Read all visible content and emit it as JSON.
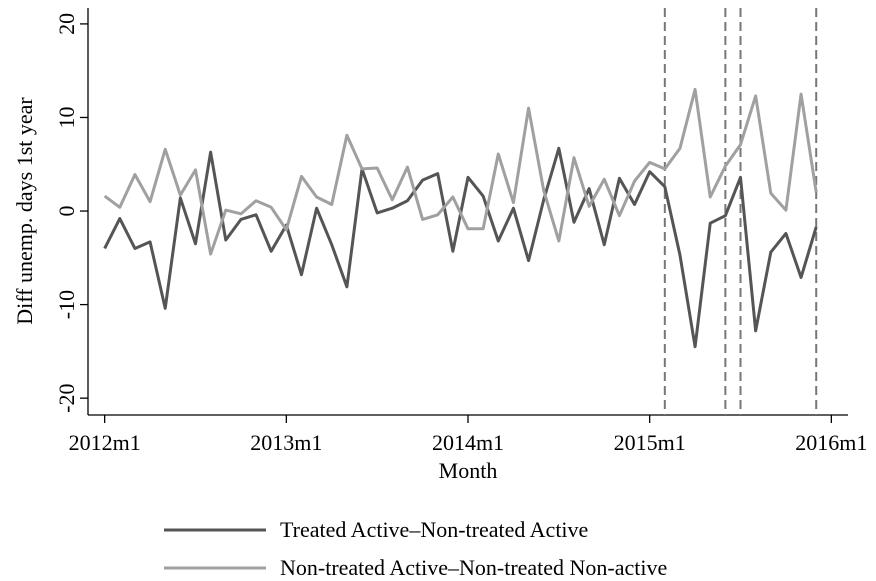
{
  "chart_data": {
    "type": "line",
    "y_label": "Diff unemp. days 1st year",
    "x_label": "Month",
    "x": [
      0,
      1,
      2,
      3,
      4,
      5,
      6,
      7,
      8,
      9,
      10,
      11,
      12,
      13,
      14,
      15,
      16,
      17,
      18,
      19,
      20,
      21,
      22,
      23,
      24,
      25,
      26,
      27,
      28,
      29,
      30,
      31,
      32,
      33,
      34,
      35,
      36,
      37,
      38,
      39,
      40,
      41,
      42,
      43,
      44,
      45,
      46,
      47
    ],
    "series": [
      {
        "name": "Treated Active–Non-treated Active",
        "color": "#555555",
        "values": [
          -4.0,
          -0.8,
          -4.0,
          -3.3,
          -10.4,
          1.4,
          -3.5,
          6.3,
          -3.1,
          -0.9,
          -0.4,
          -4.3,
          -1.5,
          -6.8,
          0.3,
          -3.6,
          -8.1,
          4.5,
          -0.2,
          0.3,
          1.1,
          3.3,
          4.0,
          -4.3,
          3.6,
          1.6,
          -3.2,
          0.3,
          -5.3,
          1.2,
          6.7,
          -1.2,
          2.4,
          -3.6,
          3.5,
          0.7,
          4.2,
          2.6,
          -4.7,
          -14.5,
          -1.3,
          -0.5,
          3.6,
          -12.8,
          -4.4,
          -2.4,
          -7.1,
          -1.7
        ]
      },
      {
        "name": "Non-treated Active–Non-treated Non-active",
        "color": "#a0a0a0",
        "values": [
          1.6,
          0.4,
          3.9,
          1.0,
          6.6,
          1.7,
          4.4,
          -4.6,
          0.1,
          -0.3,
          1.1,
          0.4,
          -2.0,
          3.7,
          1.5,
          0.7,
          8.1,
          4.5,
          4.6,
          1.2,
          4.7,
          -0.9,
          -0.4,
          1.5,
          -1.9,
          -1.9,
          6.1,
          0.9,
          11.0,
          2.2,
          -3.2,
          5.7,
          0.5,
          3.4,
          -0.5,
          3.2,
          5.2,
          4.5,
          6.7,
          13.0,
          1.5,
          4.8,
          7.1,
          12.3,
          1.9,
          0.1,
          12.5,
          2.0
        ]
      }
    ],
    "vlines": [
      37,
      41,
      42,
      47
    ],
    "xlim": [
      -1.1,
      49.1
    ],
    "xticks": [
      {
        "value": 0,
        "label": "2012m1"
      },
      {
        "value": 12,
        "label": "2013m1"
      },
      {
        "value": 24,
        "label": "2014m1"
      },
      {
        "value": 36,
        "label": "2015m1"
      },
      {
        "value": 48,
        "label": "2016m1"
      }
    ],
    "ylim": [
      -21.8,
      21.7
    ],
    "yticks": [
      -20,
      -10,
      0,
      10,
      20
    ],
    "legend": "bottom"
  }
}
